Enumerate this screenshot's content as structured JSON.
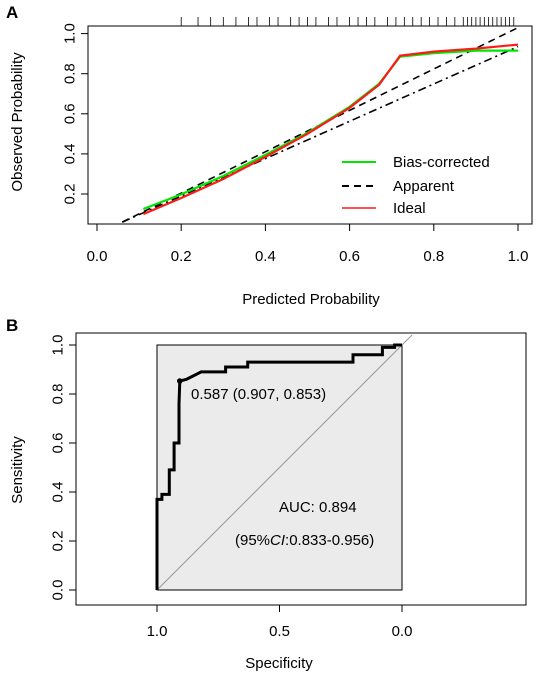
{
  "panel_a_label": "A",
  "panel_b_label": "B",
  "colors": {
    "bias_corrected": "#00e600",
    "apparent": "#000000",
    "ideal": "#ff1a1a",
    "roc_fill": "#ebebeb"
  },
  "chart_data": [
    {
      "type": "line",
      "panel": "A",
      "title": "",
      "xlabel": "Predicted Probability",
      "ylabel": "Observed Probability",
      "xlim": [
        0.0,
        1.0
      ],
      "ylim": [
        0.05,
        1.03
      ],
      "xticks": [
        "0.0",
        "0.2",
        "0.4",
        "0.6",
        "0.8",
        "1.0"
      ],
      "yticks": [
        "0.2",
        "0.4",
        "0.6",
        "0.8",
        "1.0"
      ],
      "legend": {
        "position": "bottom-right",
        "entries": [
          "Bias-corrected",
          "Apparent",
          "Ideal"
        ]
      },
      "series": [
        {
          "name": "Bias-corrected",
          "style": "solid",
          "color": "#00e600",
          "points": [
            [
              0.11,
              0.125
            ],
            [
              0.2,
              0.198
            ],
            [
              0.3,
              0.29
            ],
            [
              0.4,
              0.395
            ],
            [
              0.5,
              0.505
            ],
            [
              0.6,
              0.635
            ],
            [
              0.67,
              0.75
            ],
            [
              0.72,
              0.885
            ],
            [
              0.8,
              0.902
            ],
            [
              0.9,
              0.915
            ],
            [
              1.0,
              0.915
            ]
          ]
        },
        {
          "name": "Apparent",
          "style": "dashed",
          "color": "#000000",
          "points": [
            [
              0.06,
              0.06
            ],
            [
              1.0,
              1.03
            ]
          ]
        },
        {
          "name": "Ideal",
          "style": "solid",
          "color": "#ff1a1a",
          "points": [
            [
              0.11,
              0.1
            ],
            [
              0.2,
              0.18
            ],
            [
              0.3,
              0.275
            ],
            [
              0.4,
              0.385
            ],
            [
              0.5,
              0.5
            ],
            [
              0.6,
              0.63
            ],
            [
              0.67,
              0.745
            ],
            [
              0.72,
              0.89
            ],
            [
              0.8,
              0.91
            ],
            [
              0.9,
              0.925
            ],
            [
              1.0,
              0.945
            ]
          ]
        },
        {
          "name": "Ideal-diagonal",
          "style": "dashdot",
          "color": "#000000",
          "points": [
            [
              0.06,
              0.06
            ],
            [
              1.0,
              0.935
            ]
          ]
        }
      ],
      "rug_x": [
        0.2,
        0.24,
        0.27,
        0.3,
        0.33,
        0.36,
        0.38,
        0.41,
        0.43,
        0.46,
        0.48,
        0.5,
        0.52,
        0.55,
        0.57,
        0.6,
        0.62,
        0.64,
        0.66,
        0.69,
        0.71,
        0.73,
        0.75,
        0.77,
        0.79,
        0.81,
        0.83,
        0.85,
        0.87,
        0.88,
        0.89,
        0.9,
        0.91,
        0.92,
        0.93,
        0.94,
        0.95,
        0.96,
        0.97,
        0.98,
        0.99
      ]
    },
    {
      "type": "line",
      "panel": "B",
      "title": "",
      "xlabel": "Specificity",
      "ylabel": "Sensitivity",
      "xlim": [
        1.0,
        0.0
      ],
      "ylim": [
        0.0,
        1.0
      ],
      "xticks": [
        "1.0",
        "0.5",
        "0.0"
      ],
      "yticks": [
        "0.0",
        "0.2",
        "0.4",
        "0.6",
        "0.8",
        "1.0"
      ],
      "annotations": {
        "threshold": "0.587 (0.907, 0.853)",
        "auc": "AUC: 0.894",
        "ci_open": "(95%",
        "ci_italic": "CI",
        "ci_rest": ":0.833-0.956)"
      },
      "series": [
        {
          "name": "ROC",
          "color": "#000000",
          "points": [
            [
              1.0,
              0.0
            ],
            [
              1.0,
              0.37
            ],
            [
              0.98,
              0.37
            ],
            [
              0.98,
              0.39
            ],
            [
              0.95,
              0.39
            ],
            [
              0.95,
              0.49
            ],
            [
              0.93,
              0.49
            ],
            [
              0.93,
              0.6
            ],
            [
              0.91,
              0.6
            ],
            [
              0.91,
              0.76
            ],
            [
              0.907,
              0.853
            ],
            [
              0.88,
              0.86
            ],
            [
              0.86,
              0.87
            ],
            [
              0.84,
              0.88
            ],
            [
              0.82,
              0.89
            ],
            [
              0.72,
              0.89
            ],
            [
              0.72,
              0.91
            ],
            [
              0.63,
              0.91
            ],
            [
              0.63,
              0.93
            ],
            [
              0.2,
              0.93
            ],
            [
              0.2,
              0.96
            ],
            [
              0.08,
              0.96
            ],
            [
              0.08,
              0.99
            ],
            [
              0.03,
              0.99
            ],
            [
              0.03,
              1.0
            ],
            [
              0.0,
              1.0
            ]
          ]
        }
      ],
      "threshold_point": [
        0.907,
        0.853
      ],
      "diagonal": [
        [
          1.0,
          0.0
        ],
        [
          0.0,
          1.0
        ]
      ]
    }
  ]
}
